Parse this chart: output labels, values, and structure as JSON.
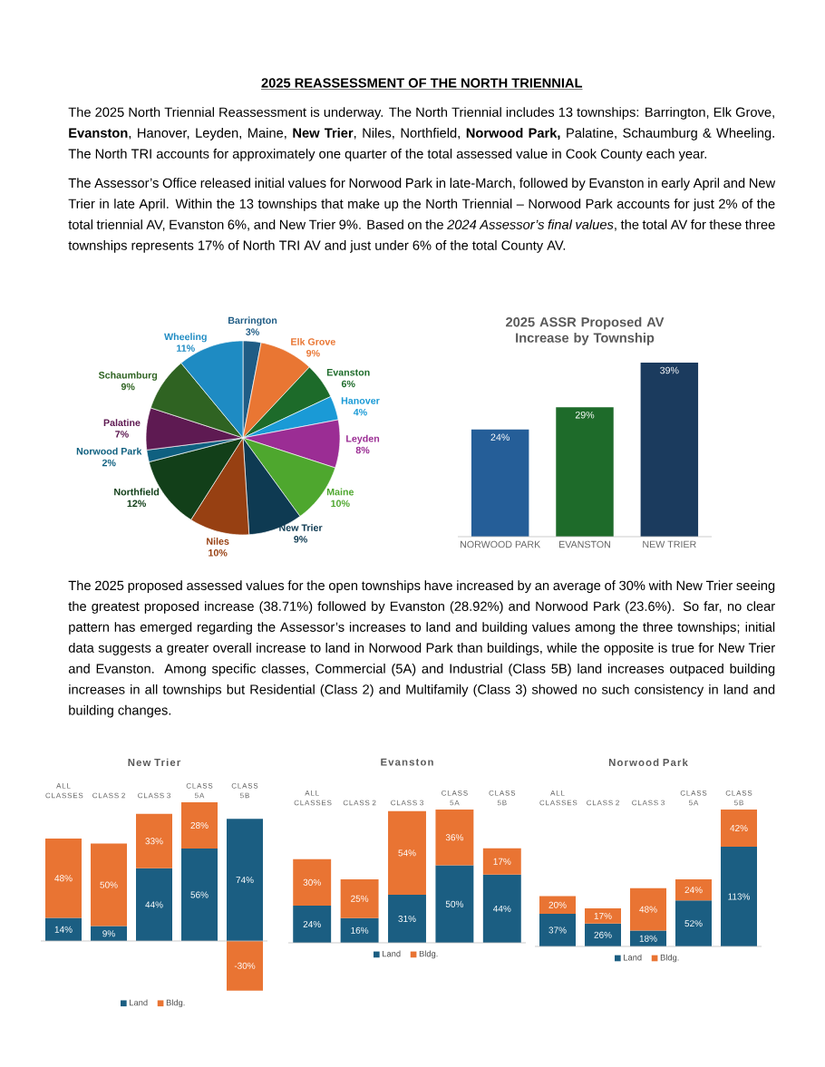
{
  "chart_data": [
    {
      "type": "other",
      "title": "2025 REASSESSMENT OF THE NORTH TRIENNIAL",
      "annotations": [
        "The 2025 North Triennial Reassessment is underway. The North Triennial includes 13 townships: Barrington, Elk Grove, **Evanston**, Hanover, Leyden, Maine, **New Trier**, Niles, Northfield, **Norwood Park,** Palatine, Schaumburg & Wheeling. The North TRI accounts for approximately one quarter of the total assessed value in Cook County each year.",
        "The Assessor’s Office released initial values for Norwood Park in late-March, followed by Evanston in early April and New Trier in late April. Within the 13 townships that make up the North Triennial – Norwood Park accounts for just 2% of the total triennial AV, Evanston 6%, and New Trier 9%. Based on the *2024 Assessor’s final values*, the total AV for these three townships represents 17% of North TRI AV and just under 6% of the total County AV."
      ]
    },
    {
      "type": "pie",
      "categories": [
        "Barrington",
        "Elk Grove",
        "Evanston",
        "Hanover",
        "Leyden",
        "Maine",
        "New Trier",
        "Niles",
        "Northfield",
        "Norwood Park",
        "Palatine",
        "Schaumburg",
        "Wheeling"
      ],
      "values": [
        3,
        9,
        6,
        4,
        8,
        10,
        9,
        10,
        12,
        2,
        7,
        9,
        11
      ],
      "value_labels": [
        "3%",
        "9%",
        "6%",
        "4%",
        "8%",
        "10%",
        "9%",
        "10%",
        "12%",
        "2%",
        "7%",
        "9%",
        "11%"
      ],
      "colors": [
        "#1f5c85",
        "#e97633",
        "#1d6b2a",
        "#1a9ad6",
        "#9b2d94",
        "#4ea72e",
        "#0e3a52",
        "#974012",
        "#123f19",
        "#0f6080",
        "#5e1a52",
        "#2f6322",
        "#1e8bc3"
      ]
    },
    {
      "type": "bar",
      "title": "2025 ASSR Proposed AV Increase by Township",
      "categories": [
        "NORWOOD PARK",
        "EVANSTON",
        "NEW TRIER"
      ],
      "values": [
        24,
        29,
        39
      ],
      "value_labels": [
        "24%",
        "29%",
        "39%"
      ],
      "colors": [
        "#255e98",
        "#1e6b2a",
        "#1b3b5e"
      ]
    },
    {
      "type": "other",
      "annotations": [
        "The 2025 proposed assessed values for the open townships have increased by an average of 30% with New Trier seeing the greatest proposed increase (38.71%) followed by Evanston (28.92%) and Norwood Park (23.6%). So far, no clear pattern has emerged regarding the Assessor’s increases to land and building values among the three townships; initial data suggests a greater overall increase to land in Norwood Park than buildings, while the opposite is true for New Trier and Evanston. Among specific classes, Commercial (5A) and Industrial (Class 5B) land increases outpaced building increases in all townships but Residential (Class 2) and Multifamily (Class 3) showed no such consistency in land and building changes."
      ]
    },
    {
      "type": "bar",
      "stacked": true,
      "title": "New Trier",
      "legend": "bottom",
      "categories": [
        "ALL CLASSES",
        "CLASS 2",
        "CLASS 3",
        "CLASS 5A",
        "CLASS 5B"
      ],
      "series": [
        {
          "name": "Land",
          "color": "#1b5e82",
          "values": [
            14,
            9,
            44,
            56,
            74
          ],
          "value_labels": [
            "14%",
            "9%",
            "44%",
            "56%",
            "74%"
          ]
        },
        {
          "name": "Bldg.",
          "color": "#e97433",
          "values": [
            48,
            50,
            33,
            28,
            -30
          ],
          "value_labels": [
            "48%",
            "50%",
            "33%",
            "28%",
            "-30%"
          ]
        }
      ]
    },
    {
      "type": "bar",
      "stacked": true,
      "title": "Evanston",
      "legend": "bottom",
      "categories": [
        "ALL CLASSES",
        "CLASS 2",
        "CLASS 3",
        "CLASS 5A",
        "CLASS 5B"
      ],
      "series": [
        {
          "name": "Land",
          "color": "#1b5e82",
          "values": [
            24,
            16,
            31,
            50,
            44
          ],
          "value_labels": [
            "24%",
            "16%",
            "31%",
            "50%",
            "44%"
          ]
        },
        {
          "name": "Bldg.",
          "color": "#e97433",
          "values": [
            30,
            25,
            54,
            36,
            17
          ],
          "value_labels": [
            "30%",
            "25%",
            "54%",
            "36%",
            "17%"
          ]
        }
      ]
    },
    {
      "type": "bar",
      "stacked": true,
      "title": "Norwood Park",
      "legend": "bottom",
      "categories": [
        "ALL CLASSES",
        "CLASS 2",
        "CLASS 3",
        "CLASS 5A",
        "CLASS 5B"
      ],
      "series": [
        {
          "name": "Land",
          "color": "#1b5e82",
          "values": [
            37,
            26,
            18,
            52,
            113
          ],
          "value_labels": [
            "37%",
            "26%",
            "18%",
            "52%",
            "113%"
          ]
        },
        {
          "name": "Bldg.",
          "color": "#e97433",
          "values": [
            20,
            17,
            48,
            24,
            42
          ],
          "value_labels": [
            "20%",
            "17%",
            "48%",
            "24%",
            "42%"
          ]
        }
      ]
    }
  ]
}
